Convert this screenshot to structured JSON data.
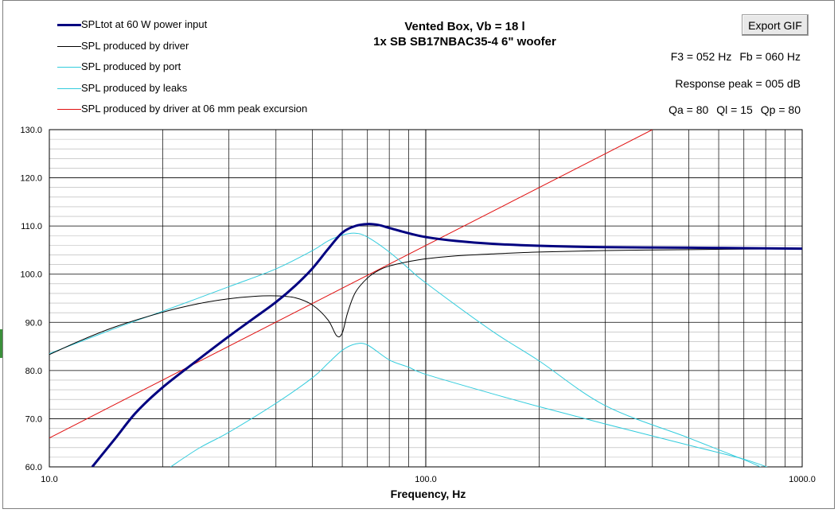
{
  "window": {
    "export_button_label": "Export GIF"
  },
  "info": {
    "f3": "F3 = 052 Hz",
    "fb": "Fb = 060 Hz",
    "response_peak": "Response peak = 005 dB",
    "qa": "Qa = 80",
    "ql": "Ql = 15",
    "qp": "Qp = 80"
  },
  "colors": {
    "total": "#000080",
    "driver": "#000000",
    "port": "#33ccdd",
    "leaks": "#33ccdd",
    "excursion": "#e01010",
    "grid": "#000000"
  },
  "chart_data": {
    "type": "line",
    "title": "Vented Box, Vb = 18 l",
    "subtitle": "1x SB SB17NBAC35-4 6\" woofer",
    "xlabel": "Frequency, Hz",
    "ylabel": "",
    "xscale": "log",
    "xlim": [
      10,
      1000
    ],
    "ylim": [
      60,
      130
    ],
    "x_tick_labels": [
      "10.0",
      "100.0",
      "1000.0"
    ],
    "y_tick_labels": [
      "60.0",
      "70.0",
      "80.0",
      "90.0",
      "100.0",
      "110.0",
      "120.0",
      "130.0"
    ],
    "grid": true,
    "legend_position": "top-left",
    "series": [
      {
        "name": "SPLtot at 60 W power input",
        "color": "#000080",
        "points": [
          [
            13,
            60
          ],
          [
            15,
            66
          ],
          [
            17,
            71.3
          ],
          [
            20,
            76.5
          ],
          [
            25,
            82.4
          ],
          [
            30,
            87.1
          ],
          [
            35,
            90.9
          ],
          [
            40,
            94.2
          ],
          [
            45,
            97.6
          ],
          [
            50,
            101.2
          ],
          [
            55,
            105.2
          ],
          [
            60,
            108.6
          ],
          [
            65,
            110
          ],
          [
            70,
            110.4
          ],
          [
            75,
            110.2
          ],
          [
            80,
            109.6
          ],
          [
            90,
            108.5
          ],
          [
            100,
            107.7
          ],
          [
            120,
            106.9
          ],
          [
            150,
            106.3
          ],
          [
            200,
            105.9
          ],
          [
            300,
            105.6
          ],
          [
            500,
            105.5
          ],
          [
            700,
            105.4
          ],
          [
            1000,
            105.3
          ]
        ]
      },
      {
        "name": "SPL produced by driver",
        "color": "#000000",
        "points": [
          [
            10,
            83.3
          ],
          [
            12,
            86.1
          ],
          [
            15,
            89.1
          ],
          [
            20,
            92.1
          ],
          [
            25,
            93.9
          ],
          [
            30,
            94.9
          ],
          [
            35,
            95.4
          ],
          [
            40,
            95.5
          ],
          [
            45,
            95.1
          ],
          [
            50,
            93.6
          ],
          [
            55,
            90.5
          ],
          [
            58,
            87.2
          ],
          [
            60,
            87.8
          ],
          [
            62,
            92
          ],
          [
            65,
            96.2
          ],
          [
            70,
            99.2
          ],
          [
            75,
            100.8
          ],
          [
            80,
            101.7
          ],
          [
            90,
            102.6
          ],
          [
            100,
            103.2
          ],
          [
            120,
            103.8
          ],
          [
            150,
            104.2
          ],
          [
            200,
            104.6
          ],
          [
            300,
            104.9
          ],
          [
            500,
            105.1
          ],
          [
            700,
            105.2
          ],
          [
            1000,
            105.3
          ]
        ]
      },
      {
        "name": "SPL produced by port",
        "color": "#33ccdd",
        "points": [
          [
            10,
            83.5
          ],
          [
            15,
            88.8
          ],
          [
            20,
            92.3
          ],
          [
            30,
            97.4
          ],
          [
            40,
            101.1
          ],
          [
            50,
            104.9
          ],
          [
            55,
            106.9
          ],
          [
            60,
            108.1
          ],
          [
            65,
            108.5
          ],
          [
            70,
            107.7
          ],
          [
            80,
            104.6
          ],
          [
            90,
            101.2
          ],
          [
            100,
            98.2
          ],
          [
            150,
            88.2
          ],
          [
            200,
            82
          ],
          [
            300,
            72.7
          ],
          [
            500,
            66
          ],
          [
            700,
            61.5
          ],
          [
            800,
            59.5
          ]
        ]
      },
      {
        "name": "SPL produced by leaks",
        "color": "#33ccdd",
        "points": [
          [
            21,
            60
          ],
          [
            25,
            63.9
          ],
          [
            30,
            67.2
          ],
          [
            40,
            73.2
          ],
          [
            50,
            78.5
          ],
          [
            55,
            81.5
          ],
          [
            60,
            84.2
          ],
          [
            65,
            85.5
          ],
          [
            70,
            85.3
          ],
          [
            80,
            82.2
          ],
          [
            90,
            80.7
          ],
          [
            100,
            79.2
          ],
          [
            150,
            75.2
          ],
          [
            200,
            72.5
          ],
          [
            300,
            68.9
          ],
          [
            500,
            64.5
          ],
          [
            700,
            61.6
          ],
          [
            850,
            59.3
          ]
        ]
      },
      {
        "name": "SPL produced by driver at 06 mm peak excursion",
        "color": "#e01010",
        "points": [
          [
            10,
            66
          ],
          [
            400,
            130
          ]
        ]
      }
    ]
  }
}
